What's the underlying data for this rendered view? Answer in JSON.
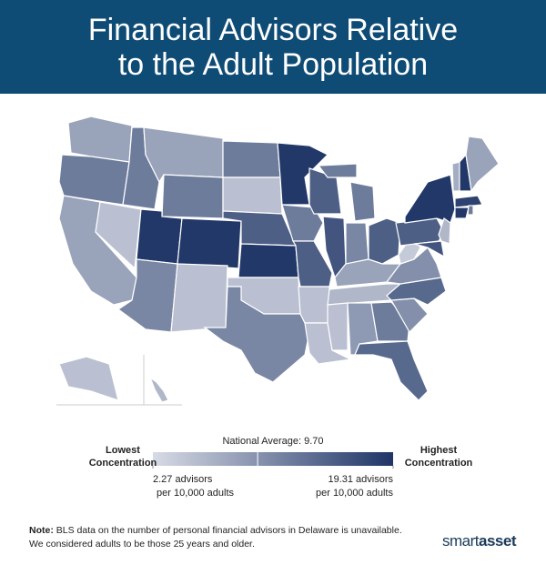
{
  "header": {
    "title_lines": [
      "Financial Advisors Relative",
      "to the Adult Population"
    ]
  },
  "map": {
    "values": [
      8,
      12,
      8,
      5,
      12,
      8,
      12,
      19,
      19,
      11,
      5,
      12,
      5,
      15,
      19,
      5,
      11,
      19,
      12,
      15,
      5,
      5,
      15,
      16,
      12,
      11,
      15,
      8,
      6,
      5,
      9,
      12,
      14,
      10,
      14,
      10,
      4,
      15,
      19,
      16,
      6,
      18,
      19,
      12,
      7,
      19,
      8,
      5,
      6
    ]
  },
  "legend": {
    "average": {
      "value": 9.7,
      "label": "National Average: 9.70"
    },
    "low_lines": [
      "Lowest",
      "Concentration"
    ],
    "high_lines": [
      "Highest",
      "Concentration"
    ],
    "min": {
      "value": 2.27,
      "label": "2.27 advisors"
    },
    "min_unit": "per 10,000 adults",
    "max": {
      "value": 19.31,
      "label": "19.31 advisors"
    },
    "max_unit": "per 10,000 adults"
  },
  "note": {
    "lead": "Note:",
    "text": "BLS data on the number of personal financial advisors in Delaware is unavailable. We considered adults to be those 25 years and older."
  },
  "logo": {
    "left": "smart",
    "right": "asset"
  }
}
